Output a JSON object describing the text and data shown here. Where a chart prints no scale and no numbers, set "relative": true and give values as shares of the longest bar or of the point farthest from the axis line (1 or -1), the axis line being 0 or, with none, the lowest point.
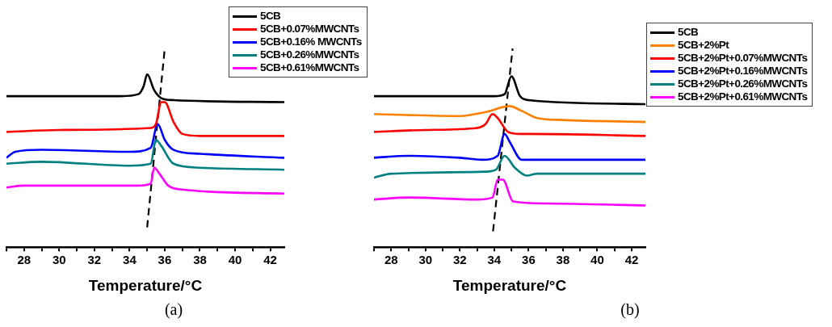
{
  "chart_data": [
    {
      "type": "line",
      "xlabel": "Temperature/°C",
      "relative": true,
      "xlim": [
        27,
        42.8
      ],
      "xticks": [
        {
          "value": 27,
          "label": null
        },
        28,
        {
          "value": 29,
          "label": null
        },
        30,
        {
          "value": 31,
          "label": null
        },
        32,
        {
          "value": 33,
          "label": null
        },
        34,
        {
          "value": 35,
          "label": null
        },
        36,
        {
          "value": 37,
          "label": null
        },
        38,
        {
          "value": 39,
          "label": null
        },
        40,
        {
          "value": 41,
          "label": null
        },
        42
      ],
      "legend": "top right",
      "marker": "none",
      "grid": false,
      "annotations": [
        "(a)"
      ],
      "series": [
        {
          "name": "5CB",
          "color": "#000000",
          "x": [
            27,
            33.5,
            34.5,
            34.8,
            35.0,
            35.4,
            35.8,
            36.5,
            42.8
          ],
          "values": [
            0.76,
            0.76,
            0.77,
            0.81,
            0.87,
            0.79,
            0.75,
            0.74,
            0.73
          ]
        },
        {
          "name": "5CB+0.07%MWCNTs",
          "color": "#ff0000",
          "x": [
            27,
            30,
            35.2,
            35.5,
            35.8,
            36.0,
            36.5,
            37,
            38,
            42.8
          ],
          "values": [
            0.58,
            0.59,
            0.6,
            0.62,
            0.73,
            0.73,
            0.63,
            0.57,
            0.56,
            0.56
          ]
        },
        {
          "name": "5CB+0.16% MWCNTs",
          "color": "#0000ff",
          "x": [
            27,
            27.5,
            29,
            34,
            35.2,
            35.6,
            36,
            36.5,
            38,
            42.8
          ],
          "values": [
            0.45,
            0.48,
            0.49,
            0.48,
            0.5,
            0.62,
            0.54,
            0.49,
            0.47,
            0.45
          ]
        },
        {
          "name": "5CB+0.26%MWCNTs",
          "color": "#008080",
          "x": [
            27,
            29,
            34,
            35.2,
            35.5,
            35.8,
            36.5,
            38,
            42.8
          ],
          "values": [
            0.42,
            0.43,
            0.41,
            0.42,
            0.54,
            0.51,
            0.42,
            0.4,
            0.39
          ]
        },
        {
          "name": "5CB+0.61%MWCNTs",
          "color": "#ff00ff",
          "x": [
            27,
            28,
            30,
            34.5,
            35.2,
            35.4,
            35.7,
            36.2,
            37,
            42.8
          ],
          "values": [
            0.3,
            0.31,
            0.31,
            0.31,
            0.32,
            0.4,
            0.37,
            0.31,
            0.29,
            0.27
          ]
        },
        {
          "color": "#000000",
          "line_style": "dashed",
          "x": [
            35.0,
            36.0
          ],
          "values": [
            0.1,
            1
          ]
        }
      ]
    },
    {
      "type": "line",
      "xlabel": "Temperature/°C",
      "relative": true,
      "xlim": [
        27,
        42.8
      ],
      "xticks": [
        {
          "value": 27,
          "label": null
        },
        28,
        {
          "value": 29,
          "label": null
        },
        30,
        {
          "value": 31,
          "label": null
        },
        32,
        {
          "value": 33,
          "label": null
        },
        34,
        {
          "value": 35,
          "label": null
        },
        36,
        {
          "value": 37,
          "label": null
        },
        38,
        {
          "value": 39,
          "label": null
        },
        40,
        {
          "value": 41,
          "label": null
        },
        42
      ],
      "legend": "top right",
      "marker": "none",
      "grid": false,
      "annotations": [
        "(b)"
      ],
      "series": [
        {
          "name": "5CB",
          "color": "#000000",
          "x": [
            27,
            34,
            34.6,
            35.0,
            35.5,
            36,
            42.8
          ],
          "values": [
            0.76,
            0.76,
            0.77,
            0.86,
            0.76,
            0.74,
            0.72
          ]
        },
        {
          "name": "5CB+2%Pt",
          "color": "#ff8000",
          "x": [
            27,
            32,
            33.5,
            34.9,
            35.5,
            36.5,
            38,
            42.8
          ],
          "values": [
            0.67,
            0.66,
            0.68,
            0.71,
            0.69,
            0.65,
            0.64,
            0.63
          ]
        },
        {
          "name": "5CB+2%Pt+0.07%MWCNTs",
          "color": "#ff0000",
          "x": [
            27,
            30,
            33,
            33.5,
            33.9,
            34.2,
            34.8,
            35.5,
            36,
            42.8
          ],
          "values": [
            0.58,
            0.59,
            0.6,
            0.62,
            0.67,
            0.65,
            0.58,
            0.57,
            0.57,
            0.56
          ]
        },
        {
          "name": "5CB+2%Pt+0.16%MWCNTs",
          "color": "#0000ff",
          "x": [
            27,
            29,
            32,
            33.3,
            34.2,
            34.6,
            34.9,
            35.6,
            42.8
          ],
          "values": [
            0.45,
            0.46,
            0.45,
            0.44,
            0.46,
            0.57,
            0.53,
            0.44,
            0.44
          ]
        },
        {
          "name": "5CB+2%Pt+0.26%MWCNTs",
          "color": "#008080",
          "x": [
            27,
            28,
            33.5,
            34.1,
            34.6,
            35.2,
            35.9,
            36.5,
            42.8
          ],
          "values": [
            0.35,
            0.37,
            0.38,
            0.39,
            0.46,
            0.4,
            0.36,
            0.37,
            0.37
          ]
        },
        {
          "name": "5CB+2%Pt+0.61%MWCNTs",
          "color": "#ff00ff",
          "x": [
            27,
            29,
            33,
            33.9,
            34.2,
            34.5,
            35.1,
            37,
            42.8
          ],
          "values": [
            0.24,
            0.25,
            0.24,
            0.25,
            0.34,
            0.34,
            0.23,
            0.22,
            0.21
          ]
        },
        {
          "color": "#000000",
          "line_style": "dashed",
          "x": [
            33.93,
            35.07
          ],
          "values": [
            0.08,
            1
          ]
        }
      ]
    }
  ]
}
